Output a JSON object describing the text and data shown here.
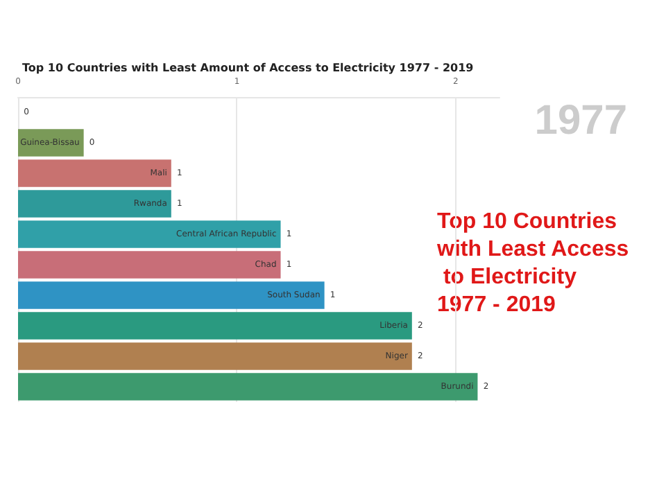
{
  "chart_data": {
    "type": "bar",
    "orientation": "horizontal",
    "title": "Top 10 Countries with Least Amount of Access to Electricity 1977 - 2019",
    "categories": [
      null,
      "Guinea-Bissau",
      "Mali",
      "Rwanda",
      "Central African Republic",
      "Chad",
      "South Sudan",
      "Liberia",
      "Niger",
      "Burundi"
    ],
    "values": [
      0,
      0.3,
      0.7,
      0.7,
      1.2,
      1.2,
      1.4,
      1.8,
      1.8,
      2.1
    ],
    "value_labels": [
      "0",
      "0",
      "1",
      "1",
      "1",
      "1",
      "1",
      "2",
      "2",
      "2"
    ],
    "colors": [
      "#7a9a58",
      "#7a9a58",
      "#c87270",
      "#2e9a9a",
      "#30a0a8",
      "#c86e78",
      "#2f93c4",
      "#2a9a80",
      "#b08050",
      "#3d9a6e"
    ],
    "xlim": [
      0,
      2.2
    ],
    "xticks": [
      0,
      1,
      2
    ],
    "grid": "x",
    "annotations": [
      "1977",
      "Top 10 Countries with Least Access to Electricity 1977 - 2019"
    ]
  }
}
